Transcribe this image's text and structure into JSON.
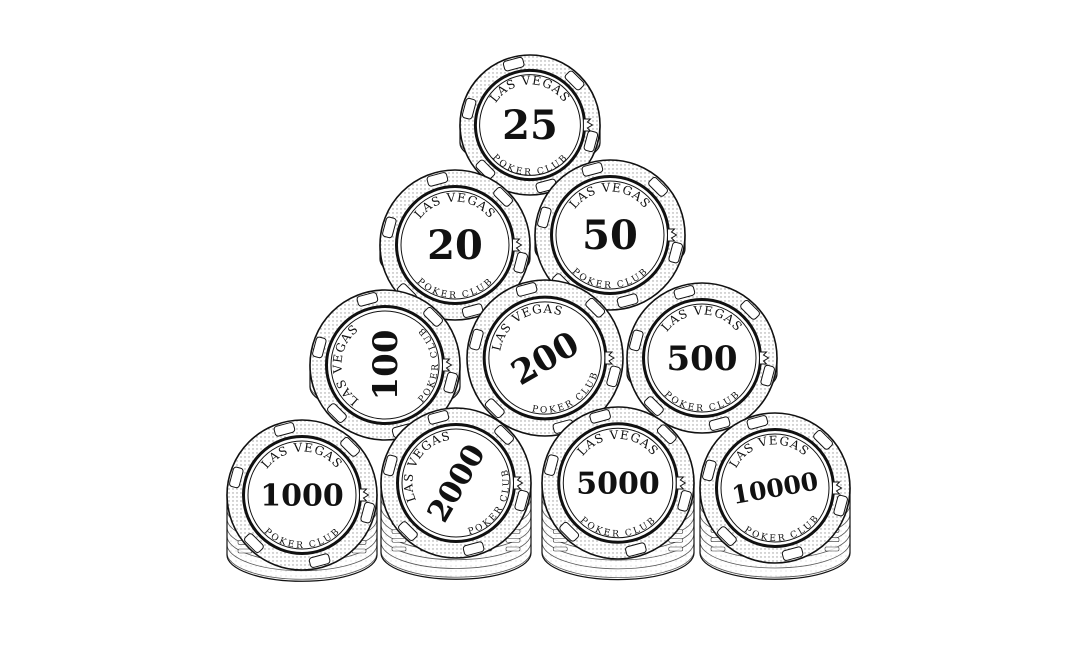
{
  "colors": {
    "ink": "#111111",
    "chip_face": "#ffffff",
    "chip_edge_shade": "#e6e6e6"
  },
  "chips": [
    {
      "value": "25",
      "top_text": "LAS VEGAS",
      "bottom_text": "POKER CLUB",
      "icon": "crown-icon"
    },
    {
      "value": "20",
      "top_text": "LAS VEGAS",
      "bottom_text": "POKER CLUB",
      "icon": "crown-icon"
    },
    {
      "value": "50",
      "top_text": "LAS VEGAS",
      "bottom_text": "POKER CLUB",
      "icon": "crown-icon"
    },
    {
      "value": "100",
      "top_text": "LAS VEGAS",
      "bottom_text": "POKER CLUB",
      "icon": "crown-icon"
    },
    {
      "value": "200",
      "top_text": "LAS VEGAS",
      "bottom_text": "POKER CLUB",
      "icon": "crown-icon"
    },
    {
      "value": "500",
      "top_text": "LAS VEGAS",
      "bottom_text": "POKER CLUB",
      "icon": "crown-icon"
    },
    {
      "value": "1000",
      "top_text": "LAS VEGAS",
      "bottom_text": "POKER CLUB",
      "icon": "crown-icon"
    },
    {
      "value": "2000",
      "top_text": "LAS VEGAS",
      "bottom_text": "POKER CLUB",
      "icon": "crown-icon"
    },
    {
      "value": "5000",
      "top_text": "LAS VEGAS",
      "bottom_text": "POKER CLUB",
      "icon": "crown-icon"
    },
    {
      "value": "10000",
      "top_text": "LAS VEGAS",
      "bottom_text": "POKER CLUB",
      "icon": "crown-icon"
    }
  ]
}
